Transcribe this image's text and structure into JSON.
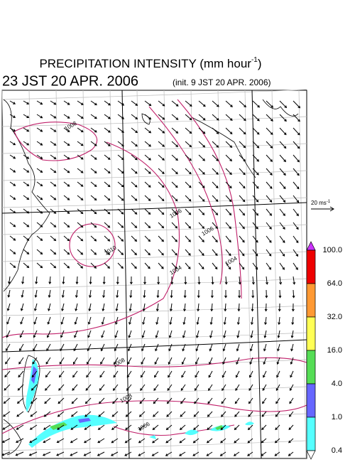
{
  "header": {
    "title": "PRECIPITATION INTENSITY (mm hour",
    "title_sup": "-1",
    "title_end": ")",
    "valid_time": "23 JST 20 APR. 2006",
    "init_time": "(init. 9 JST 20 APR. 2006)"
  },
  "map": {
    "contour_labels": [
      "1008",
      "1010",
      "1006",
      "1004",
      "1006",
      "1004",
      "1008",
      "1006",
      "1008"
    ]
  },
  "wind_scale": {
    "label": "20 ms",
    "label_sup": "-1"
  },
  "colorbar": {
    "levels": [
      {
        "value": 100,
        "label": "100.0"
      },
      {
        "value": 64,
        "label": "64.0"
      },
      {
        "value": 32,
        "label": "32.0"
      },
      {
        "value": 16,
        "label": "16.0"
      },
      {
        "value": 4,
        "label": "4.0"
      },
      {
        "value": 1,
        "label": "1.0"
      },
      {
        "value": 0.4,
        "label": "0.4"
      }
    ],
    "colors": [
      "#cc33ff",
      "#ee0000",
      "#ff9933",
      "#ffff55",
      "#55dd55",
      "#6666ff",
      "#55ffff",
      "#ffffff"
    ]
  }
}
